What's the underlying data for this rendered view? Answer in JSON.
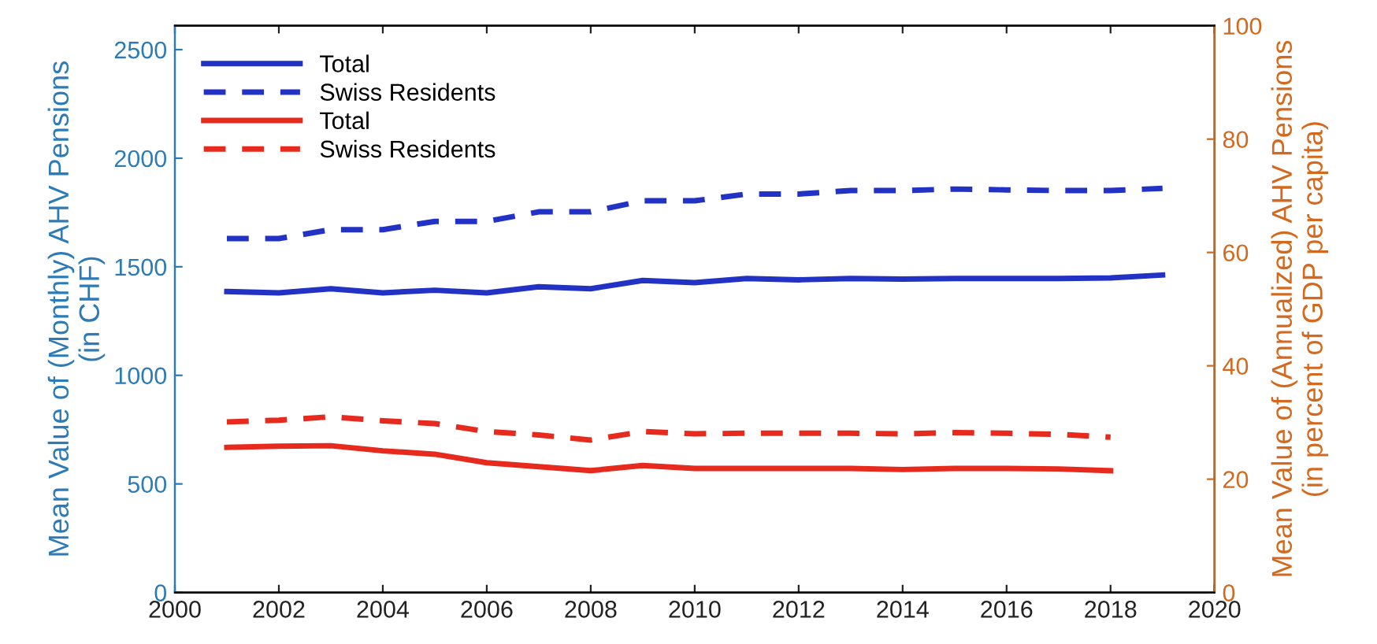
{
  "chart_data": {
    "type": "line",
    "ylabel": "Mean Value of (Monthly) AHV Pensions\n(in CHF)",
    "y2label": "Mean Value of (Annualized) AHV Pensions\n(in percent of GDP per capita)",
    "x": [
      2001,
      2002,
      2003,
      2004,
      2005,
      2006,
      2007,
      2008,
      2009,
      2010,
      2011,
      2012,
      2013,
      2014,
      2015,
      2016,
      2017,
      2018,
      2019
    ],
    "xlim": [
      2000,
      2020
    ],
    "xticks": [
      2000,
      2002,
      2004,
      2006,
      2008,
      2010,
      2012,
      2014,
      2016,
      2018,
      2020
    ],
    "ylim": [
      0,
      2610
    ],
    "yticks": [
      0,
      500,
      1000,
      1500,
      2000,
      2500
    ],
    "y2lim": [
      0,
      100
    ],
    "y2ticks": [
      0,
      20,
      40,
      60,
      80,
      100
    ],
    "grid": false,
    "legend": "top left",
    "marker": "none",
    "series": [
      {
        "name": "Total",
        "color": "#2232c4",
        "line_style": "solid",
        "values": [
          1386,
          1380,
          1399,
          1380,
          1392,
          1380,
          1408,
          1399,
          1437,
          1427,
          1446,
          1440,
          1446,
          1443,
          1446,
          1446,
          1446,
          1449,
          1462
        ]
      },
      {
        "name": "Swiss Residents",
        "color": "#2232c4",
        "line_style": "dashed",
        "values": [
          1630,
          1630,
          1671,
          1671,
          1709,
          1709,
          1753,
          1753,
          1804,
          1804,
          1835,
          1835,
          1851,
          1851,
          1858,
          1854,
          1851,
          1851,
          1861
        ]
      },
      {
        "name": "Total",
        "color": "#e62a1e",
        "line_style": "solid",
        "axis": "y2",
        "values": [
          25.6,
          25.8,
          25.9,
          25.0,
          24.4,
          22.9,
          22.2,
          21.5,
          22.4,
          21.9,
          21.9,
          21.9,
          21.9,
          21.7,
          21.9,
          21.9,
          21.8,
          21.5,
          null
        ]
      },
      {
        "name": "Swiss Residents",
        "color": "#e62a1e",
        "line_style": "dashed",
        "axis": "y2",
        "values": [
          30.1,
          30.4,
          31.0,
          30.3,
          29.8,
          28.4,
          27.8,
          26.9,
          28.4,
          28.0,
          28.1,
          28.1,
          28.1,
          28.0,
          28.2,
          28.1,
          27.9,
          27.4,
          null
        ]
      }
    ]
  }
}
